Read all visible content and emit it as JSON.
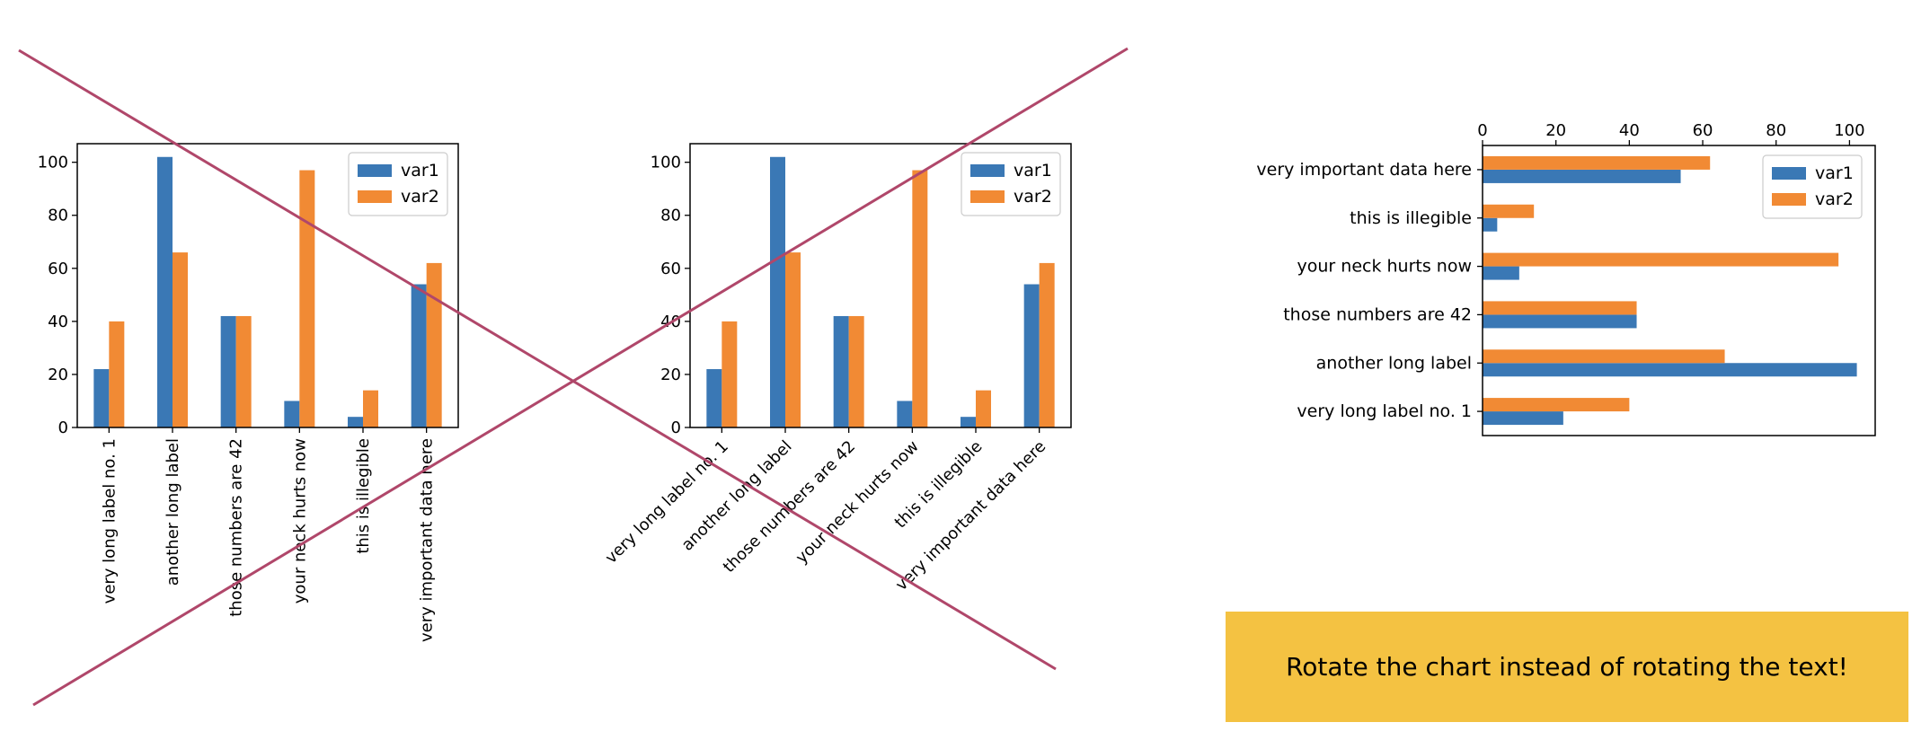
{
  "tip": "Rotate the chart instead of rotating the text!",
  "colors": {
    "var1": "#3a78b5",
    "var2": "#f18a34",
    "cross": "#b0476a",
    "tip_bg": "#f4c242"
  },
  "chart_data": [
    {
      "type": "bar",
      "orientation": "vertical",
      "tick_label_rotation": 90,
      "crossed_out": true,
      "categories": [
        "very long label no. 1",
        "another long label",
        "those numbers are 42",
        "your neck hurts now",
        "this is illegible",
        "very important data here"
      ],
      "series": [
        {
          "name": "var1",
          "values": [
            22,
            102,
            42,
            10,
            4,
            54
          ]
        },
        {
          "name": "var2",
          "values": [
            40,
            66,
            42,
            97,
            14,
            62
          ]
        }
      ],
      "ylim": [
        0,
        107
      ],
      "yticks": [
        0,
        20,
        40,
        60,
        80,
        100
      ],
      "legend": "top-right",
      "grid": false
    },
    {
      "type": "bar",
      "orientation": "vertical",
      "tick_label_rotation": 45,
      "crossed_out": true,
      "categories": [
        "very long label no. 1",
        "another long label",
        "those numbers are 42",
        "your neck hurts now",
        "this is illegible",
        "very important data here"
      ],
      "series": [
        {
          "name": "var1",
          "values": [
            22,
            102,
            42,
            10,
            4,
            54
          ]
        },
        {
          "name": "var2",
          "values": [
            40,
            66,
            42,
            97,
            14,
            62
          ]
        }
      ],
      "ylim": [
        0,
        107
      ],
      "yticks": [
        0,
        20,
        40,
        60,
        80,
        100
      ],
      "legend": "top-right",
      "grid": false
    },
    {
      "type": "bar",
      "orientation": "horizontal",
      "crossed_out": false,
      "categories": [
        "very long label no. 1",
        "another long label",
        "those numbers are 42",
        "your neck hurts now",
        "this is illegible",
        "very important data here"
      ],
      "series": [
        {
          "name": "var1",
          "values": [
            22,
            102,
            42,
            10,
            4,
            54
          ]
        },
        {
          "name": "var2",
          "values": [
            40,
            66,
            42,
            97,
            14,
            62
          ]
        }
      ],
      "xlim": [
        0,
        107
      ],
      "xticks": [
        0,
        20,
        40,
        60,
        80,
        100
      ],
      "xaxis_position": "top",
      "legend": "top-right",
      "grid": false
    }
  ]
}
